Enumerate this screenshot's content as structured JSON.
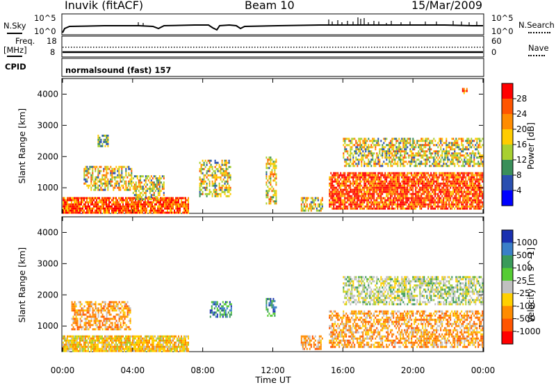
{
  "header": {
    "site": "Inuvik (fitACF)",
    "beam": "Beam 10",
    "date": "15/Mar/2009"
  },
  "params_panel": {
    "nsky_label": "N.Sky",
    "nsky_ticks": [
      "10^5",
      "10^0"
    ],
    "nsearch_label": "N.Search",
    "nsearch_ticks": [
      "10^5",
      "10^0"
    ],
    "freq_label": "Freq.",
    "freq_unit": "[MHz]",
    "freq_ticks": [
      "18",
      "8"
    ],
    "nave_label": "Nave",
    "nave_ticks": [
      "60",
      "0"
    ],
    "cpid_label": "CPID",
    "cpid_value": "normalsound (fast) 157"
  },
  "chart_data": [
    {
      "type": "heatmap",
      "parameter": "power",
      "ylabel": "Slant Range [km]",
      "y_ticks": [
        1000,
        2000,
        3000,
        4000
      ],
      "ylim": [
        180,
        4500
      ],
      "x_ticks": [
        "00:00",
        "04:00",
        "08:00",
        "12:00",
        "16:00",
        "20:00",
        "00:00"
      ],
      "xlim_hours": [
        0,
        24
      ],
      "colorbar": {
        "label": "Power [dB]",
        "ticks": [
          "28",
          "24",
          "20",
          "16",
          "12",
          "8",
          "4"
        ],
        "colors": [
          "#ff0000",
          "#ff5500",
          "#ff8c00",
          "#ffcc00",
          "#a8d030",
          "#3a8f5a",
          "#2a4fb0",
          "#0000ff"
        ]
      },
      "echo_regions": [
        {
          "t0": 0.0,
          "t1": 7.2,
          "r0": 200,
          "r1": 700,
          "level": "high"
        },
        {
          "t0": 1.2,
          "t1": 3.9,
          "r0": 900,
          "r1": 1700,
          "level": "mid"
        },
        {
          "t0": 4.0,
          "t1": 5.8,
          "r0": 600,
          "r1": 1400,
          "level": "mid"
        },
        {
          "t0": 2.0,
          "t1": 2.6,
          "r0": 2300,
          "r1": 2700,
          "level": "low"
        },
        {
          "t0": 7.8,
          "t1": 9.6,
          "r0": 700,
          "r1": 1900,
          "level": "mid"
        },
        {
          "t0": 11.6,
          "t1": 12.2,
          "r0": 500,
          "r1": 2000,
          "level": "mid"
        },
        {
          "t0": 13.6,
          "t1": 14.8,
          "r0": 250,
          "r1": 700,
          "level": "mid"
        },
        {
          "t0": 15.2,
          "t1": 24.0,
          "r0": 300,
          "r1": 1500,
          "level": "high"
        },
        {
          "t0": 16.0,
          "t1": 24.0,
          "r0": 1700,
          "r1": 2600,
          "level": "mid"
        },
        {
          "t0": 22.8,
          "t1": 23.1,
          "r0": 4000,
          "r1": 4200,
          "level": "high"
        }
      ]
    },
    {
      "type": "heatmap",
      "parameter": "velocity",
      "ylabel": "Slant Range [km]",
      "y_ticks": [
        1000,
        2000,
        3000,
        4000
      ],
      "ylim": [
        180,
        4500
      ],
      "x_ticks": [
        "00:00",
        "04:00",
        "08:00",
        "12:00",
        "16:00",
        "20:00",
        "00:00"
      ],
      "xlabel": "Time UT",
      "xlim_hours": [
        0,
        24
      ],
      "colorbar": {
        "label": "Velocity [m s^-1]",
        "ticks": [
          "1000",
          "500",
          "100",
          "25",
          "-25",
          "-100",
          "-500",
          "-1000"
        ],
        "colors": [
          "#1a30b0",
          "#3a7fc8",
          "#3a9a5a",
          "#55cc33",
          "#c0c0c0",
          "#ffd000",
          "#ff8c00",
          "#ff5500",
          "#ff0000"
        ]
      },
      "echo_regions": [
        {
          "t0": 0.0,
          "t1": 7.2,
          "r0": 200,
          "r1": 700,
          "level": "toward"
        },
        {
          "t0": 0.5,
          "t1": 3.9,
          "r0": 900,
          "r1": 1800,
          "level": "away"
        },
        {
          "t0": 8.4,
          "t1": 9.6,
          "r0": 1300,
          "r1": 1800,
          "level": "toward-fast"
        },
        {
          "t0": 11.6,
          "t1": 12.2,
          "r0": 1300,
          "r1": 1900,
          "level": "toward-fast"
        },
        {
          "t0": 13.6,
          "t1": 14.8,
          "r0": 250,
          "r1": 700,
          "level": "away"
        },
        {
          "t0": 15.2,
          "t1": 24.0,
          "r0": 300,
          "r1": 1500,
          "level": "away"
        },
        {
          "t0": 16.0,
          "t1": 24.0,
          "r0": 1700,
          "r1": 2600,
          "level": "slow"
        }
      ]
    }
  ]
}
